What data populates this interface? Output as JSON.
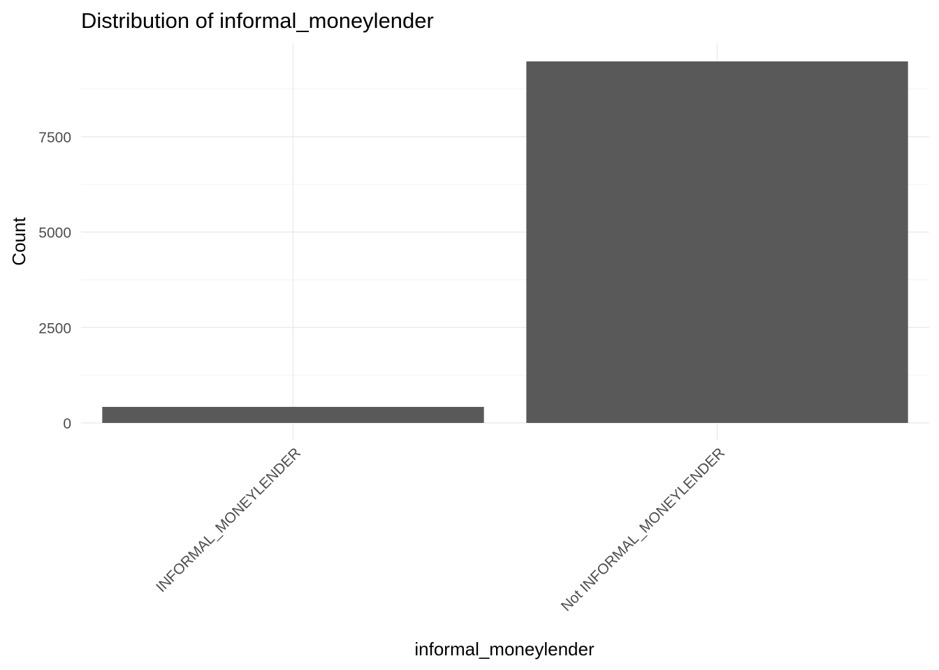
{
  "chart_data": {
    "type": "bar",
    "title": "Distribution of informal_moneylender",
    "xlabel": "informal_moneylender",
    "ylabel": "Count",
    "categories": [
      "INFORMAL_MONEYLENDER",
      "Not INFORMAL_MONEYLENDER"
    ],
    "values": [
      420,
      9470
    ],
    "ylim": [
      0,
      9470
    ],
    "yticks": [
      0,
      2500,
      5000,
      7500
    ],
    "ytick_labels": [
      "0",
      "2500",
      "5000",
      "7500"
    ],
    "grid": true,
    "legend": "none",
    "bar_color": "#595959",
    "x_tick_rotation_deg": -45
  }
}
